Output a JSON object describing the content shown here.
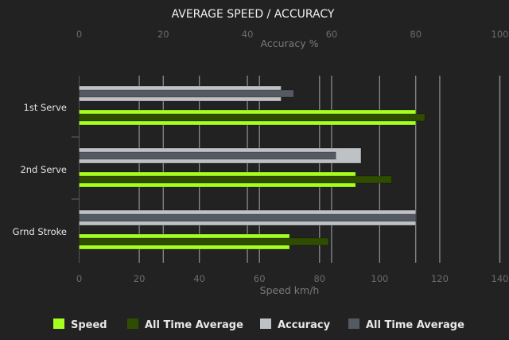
{
  "chart_data": {
    "type": "bar",
    "orientation": "horizontal",
    "title": "AVERAGE SPEED / ACCURACY",
    "categories": [
      "1st Serve",
      "2nd Serve",
      "Grnd Stroke"
    ],
    "top_axis": {
      "label": "Accuracy %",
      "range": [
        0,
        100
      ],
      "ticks": [
        0,
        20,
        40,
        60,
        80,
        100
      ]
    },
    "bottom_axis": {
      "label": "Speed km/h",
      "range": [
        0,
        140
      ],
      "ticks": [
        0,
        20,
        40,
        60,
        80,
        100,
        120,
        140
      ]
    },
    "grid": true,
    "legend_position": "bottom",
    "series": [
      {
        "name": "Speed",
        "axis": "bottom",
        "color": "#a6ff1f",
        "values": [
          112,
          92,
          70
        ]
      },
      {
        "name": "All Time Average",
        "axis": "bottom",
        "color": "#2f4d00",
        "values": [
          115,
          104,
          83
        ]
      },
      {
        "name": "Accuracy",
        "axis": "top",
        "color": "#bec2c5",
        "values": [
          48,
          67,
          80
        ]
      },
      {
        "name": "All Time Average",
        "axis": "top",
        "color": "#545962",
        "values": [
          51,
          61,
          80
        ]
      }
    ]
  }
}
